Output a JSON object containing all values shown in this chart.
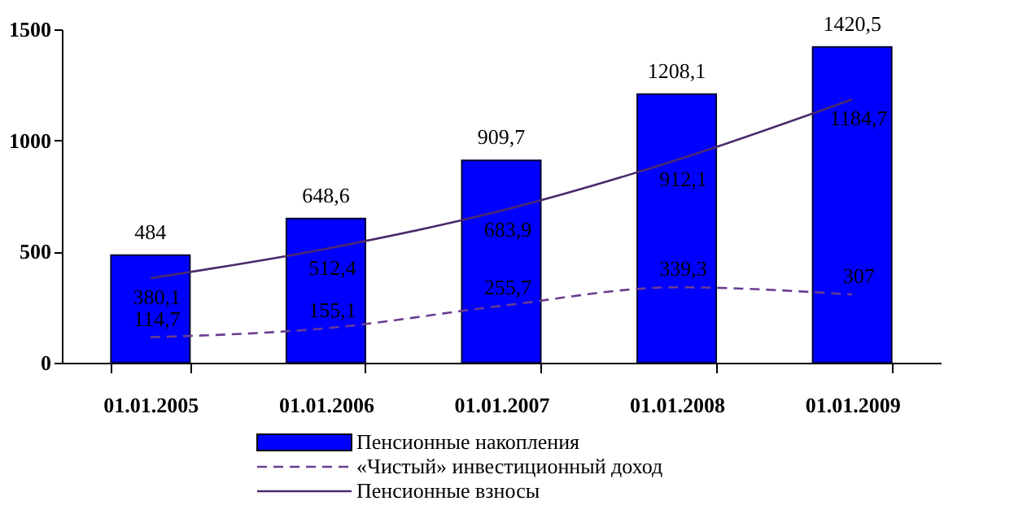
{
  "chart_data": {
    "type": "bar",
    "categories": [
      "01.01.2005",
      "01.01.2006",
      "01.01.2007",
      "01.01.2008",
      "01.01.2009"
    ],
    "series": [
      {
        "name": "Пенсионные накопления",
        "type": "bar",
        "color": "#0000ff",
        "values": [
          484,
          648.6,
          909.7,
          1208.1,
          1420.5
        ],
        "value_labels": [
          "484",
          "648,6",
          "909,7",
          "1208,1",
          "1420,5"
        ]
      },
      {
        "name": "«Чистый»  инвестиционный доход",
        "type": "line",
        "line_style": "dashed",
        "color": "#6a3d8f",
        "values": [
          114.7,
          155.1,
          255.7,
          339.3,
          307
        ],
        "value_labels": [
          "114,7",
          "155,1",
          "255,7",
          "339,3",
          "307"
        ]
      },
      {
        "name": "Пенсионные взносы",
        "type": "line",
        "line_style": "solid",
        "color": "#4b2a6b",
        "values": [
          380.1,
          512.4,
          683.9,
          912.1,
          1184.7
        ],
        "value_labels": [
          "380,1",
          "512,4",
          "683,9",
          "912,1",
          "1184,7"
        ]
      }
    ],
    "ylim": [
      0,
      1500
    ],
    "yticks": [
      0,
      500,
      1000,
      1500
    ],
    "grid": false,
    "legend": "bottom"
  }
}
